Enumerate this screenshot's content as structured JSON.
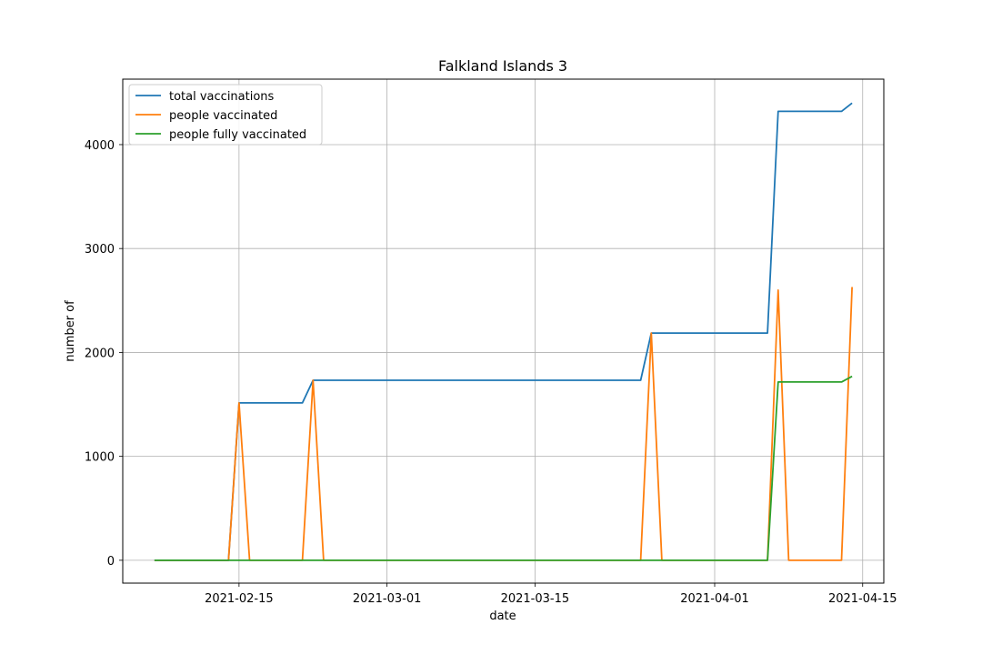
{
  "chart_data": {
    "type": "line",
    "title": "Falkland Islands 3",
    "xlabel": "date",
    "ylabel": "number of",
    "xlim": [
      "2021-02-04",
      "2021-04-17"
    ],
    "ylim": [
      -220,
      4630
    ],
    "x_ticks": [
      "2021-02-15",
      "2021-03-01",
      "2021-03-15",
      "2021-04-01",
      "2021-04-15"
    ],
    "y_ticks": [
      0,
      1000,
      2000,
      3000,
      4000
    ],
    "y_tick_labels": [
      "0",
      "1000",
      "2000",
      "3000",
      "4000"
    ],
    "grid": true,
    "legend_position": "top-left",
    "series": [
      {
        "name": "total vaccinations",
        "color": "#1f77b4",
        "points": [
          [
            "2021-02-07",
            0
          ],
          [
            "2021-02-14",
            0
          ],
          [
            "2021-02-15",
            1514
          ],
          [
            "2021-02-21",
            1514
          ],
          [
            "2021-02-22",
            1732
          ],
          [
            "2021-03-25",
            1732
          ],
          [
            "2021-03-26",
            2187
          ],
          [
            "2021-04-06",
            2187
          ],
          [
            "2021-04-07",
            4320
          ],
          [
            "2021-04-13",
            4320
          ],
          [
            "2021-04-14",
            4400
          ]
        ]
      },
      {
        "name": "people vaccinated",
        "color": "#ff7f0e",
        "points": [
          [
            "2021-02-07",
            0
          ],
          [
            "2021-02-14",
            0
          ],
          [
            "2021-02-15",
            1514
          ],
          [
            "2021-02-16",
            0
          ],
          [
            "2021-02-21",
            0
          ],
          [
            "2021-02-22",
            1732
          ],
          [
            "2021-02-23",
            0
          ],
          [
            "2021-03-25",
            0
          ],
          [
            "2021-03-26",
            2187
          ],
          [
            "2021-03-27",
            0
          ],
          [
            "2021-04-06",
            0
          ],
          [
            "2021-04-07",
            2600
          ],
          [
            "2021-04-08",
            0
          ],
          [
            "2021-04-13",
            0
          ],
          [
            "2021-04-14",
            2630
          ]
        ]
      },
      {
        "name": "people fully vaccinated",
        "color": "#2ca02c",
        "points": [
          [
            "2021-02-07",
            0
          ],
          [
            "2021-04-06",
            0
          ],
          [
            "2021-04-07",
            1716
          ],
          [
            "2021-04-13",
            1716
          ],
          [
            "2021-04-14",
            1770
          ]
        ]
      }
    ]
  }
}
